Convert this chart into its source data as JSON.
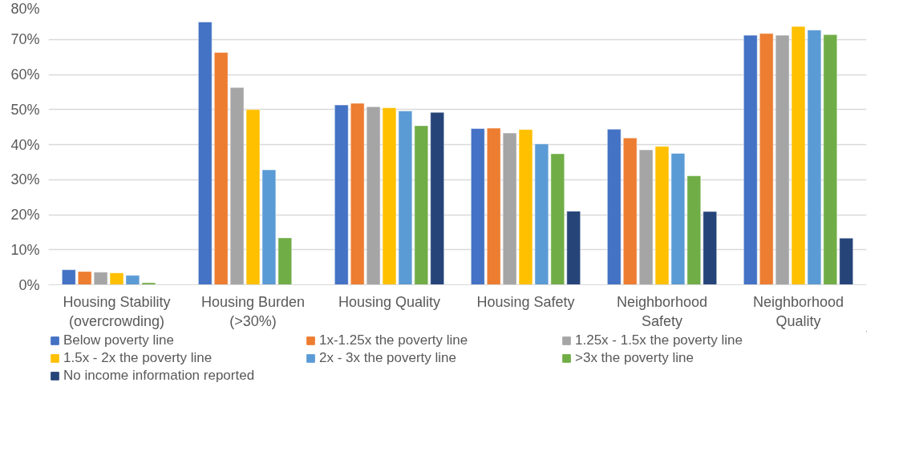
{
  "chart_data": {
    "type": "bar",
    "categories": [
      "Housing Stability\n(overcrowding)",
      "Housing Burden\n(>30%)",
      "Housing Quality",
      "Housing Safety",
      "Neighborhood\nSafety",
      "Neighborhood\nQuality"
    ],
    "series": [
      {
        "name": "Below poverty line",
        "color": "#4472c4",
        "values": [
          4.3,
          75,
          51.3,
          44.6,
          44.4,
          71.2
        ]
      },
      {
        "name": "1x-1.25x the poverty line",
        "color": "#ed7d31",
        "values": [
          3.8,
          66.3,
          51.8,
          44.7,
          41.9,
          71.7
        ]
      },
      {
        "name": "1.25x - 1.5x the poverty line",
        "color": "#a5a5a5",
        "values": [
          3.6,
          56.3,
          50.8,
          43.3,
          38.5,
          71.2
        ]
      },
      {
        "name": "1.5x - 2x the poverty line",
        "color": "#ffc000",
        "values": [
          3.4,
          50,
          50.5,
          44.3,
          39.5,
          73.7
        ]
      },
      {
        "name": "2x - 3x the poverty line",
        "color": "#5b9bd5",
        "values": [
          2.7,
          32.8,
          49.6,
          40.2,
          37.5,
          72.7
        ]
      },
      {
        "name": ">3x the poverty line",
        "color": "#70ad47",
        "values": [
          0.6,
          13.4,
          45.4,
          37.4,
          31.1,
          71.4
        ]
      },
      {
        "name": "No income information reported",
        "color": "#264478",
        "values": [
          null,
          null,
          49.2,
          21.0,
          20.9,
          13.3
        ]
      }
    ],
    "ylim": [
      0,
      80
    ],
    "yticks": [
      {
        "value": 0,
        "label": "0%"
      },
      {
        "value": 10,
        "label": "10%"
      },
      {
        "value": 20,
        "label": "20%"
      },
      {
        "value": 30,
        "label": "30%"
      },
      {
        "value": 40,
        "label": "40%"
      },
      {
        "value": 50,
        "label": "50%"
      },
      {
        "value": 60,
        "label": "60%"
      },
      {
        "value": 70,
        "label": "70%"
      },
      {
        "value": 80,
        "label": "80%"
      }
    ],
    "grid": "y",
    "legend": "bottom"
  }
}
